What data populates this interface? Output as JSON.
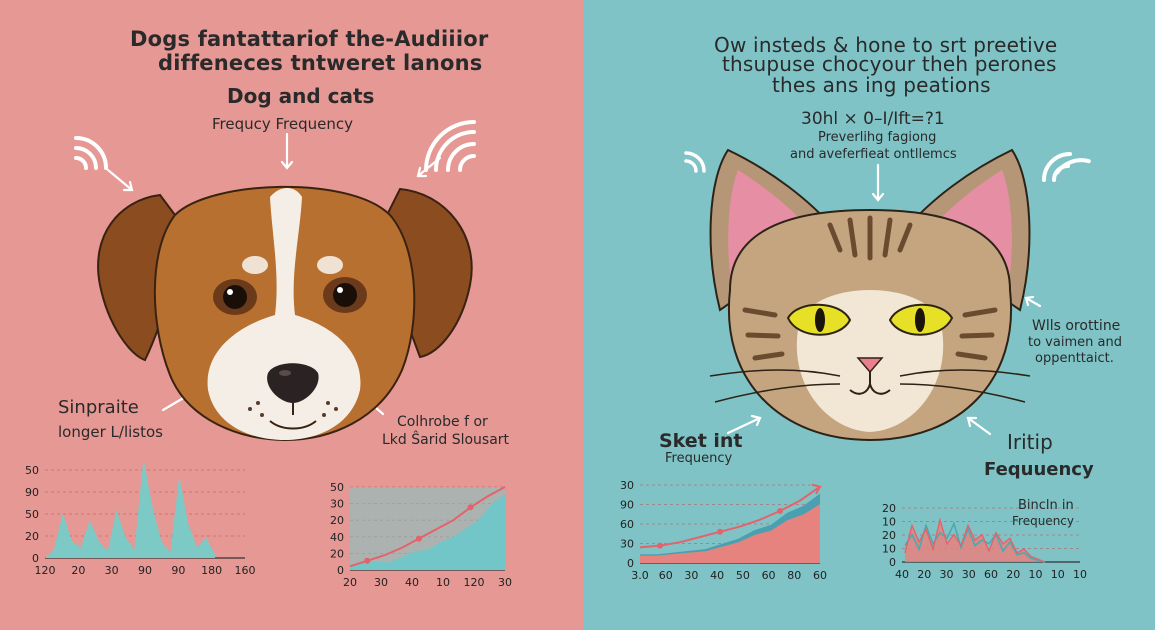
{
  "left": {
    "title_line1": "Dogs fantattarіof the-Audiiior",
    "title_line2": "diffeneces tntwerеt lanons",
    "heading": "Dog and cats",
    "subheading": "Frequcy Frequency",
    "label_left_line1": "Sinpraite",
    "label_left_line2": "longer L/listos",
    "label_right_line1": "Colhrobe f or",
    "label_right_line2": "Lkd Ŝarid Slousart",
    "chart1": {
      "yticks": [
        "50",
        "90",
        "50",
        "20",
        "0"
      ],
      "xticks": [
        "120",
        "20",
        "30",
        "90",
        "90",
        "180",
        "160"
      ],
      "values": [
        0,
        5,
        26,
        10,
        6,
        22,
        10,
        4,
        28,
        12,
        5,
        58,
        30,
        10,
        3,
        48,
        20,
        6,
        12,
        2
      ]
    },
    "chart2": {
      "yticks": [
        "50",
        "30",
        "20",
        "40",
        "20",
        "0"
      ],
      "xticks": [
        "20",
        "30",
        "40",
        "10",
        "120",
        "30"
      ],
      "area": [
        5,
        8,
        10,
        8,
        14,
        20,
        22,
        30,
        36,
        45,
        55,
        72,
        82
      ],
      "line": [
        4,
        10,
        16,
        24,
        34,
        44,
        54,
        68,
        80,
        90
      ]
    }
  },
  "right": {
    "title_line1": "Ow insteds & hone to srt preetive",
    "title_line2": "thsupuse chocyour theh perones",
    "title_line3": "thes ans ing peations",
    "formula": "30hl × 0–I/Ift=?1",
    "formula_sub1": "Preverlihg fagiong",
    "formula_sub2": "and aveferfieat ontllemcs",
    "note_line1": "Wlls orottine",
    "note_line2": "to vaimen and",
    "note_line3": "oppenttaict.",
    "label_left_line1": "Sket int",
    "label_left_line2": "Frequency",
    "label_right_line1": "Iritip",
    "label_right_line2": "Fequuency",
    "chart3": {
      "yticks": [
        "30",
        "90",
        "60",
        "30",
        "0"
      ],
      "xticks": [
        "3.0",
        "60",
        "30",
        "40",
        "50",
        "60",
        "80",
        "60"
      ],
      "area": [
        10,
        10,
        12,
        14,
        16,
        22,
        28,
        38,
        44,
        58,
        66,
        80
      ],
      "line": [
        18,
        20,
        24,
        30,
        36,
        42,
        50,
        60,
        72,
        88
      ]
    },
    "chart4": {
      "yticks": [
        "20",
        "10",
        "20",
        "10",
        "0"
      ],
      "xticks": [
        "40",
        "20",
        "30",
        "30",
        "60",
        "20",
        "10",
        "10",
        "10"
      ],
      "legend_line1": "Bincln in",
      "legend_line2": "Frequency",
      "series_a": [
        10,
        40,
        22,
        36,
        14,
        46,
        20,
        30,
        18,
        40,
        24,
        30,
        12,
        32,
        20,
        26,
        10,
        14,
        6,
        3,
        0
      ],
      "series_b": [
        18,
        30,
        14,
        40,
        20,
        32,
        26,
        42,
        16,
        36,
        18,
        24,
        20,
        30,
        12,
        22,
        8,
        10,
        4,
        2,
        0
      ]
    }
  },
  "colors": {
    "left_bg": "#e59894",
    "right_bg": "#7fc3c6",
    "teal_fill": "#7cc9c6",
    "coral_fill": "#e6837e",
    "line_red": "#e4636b"
  }
}
